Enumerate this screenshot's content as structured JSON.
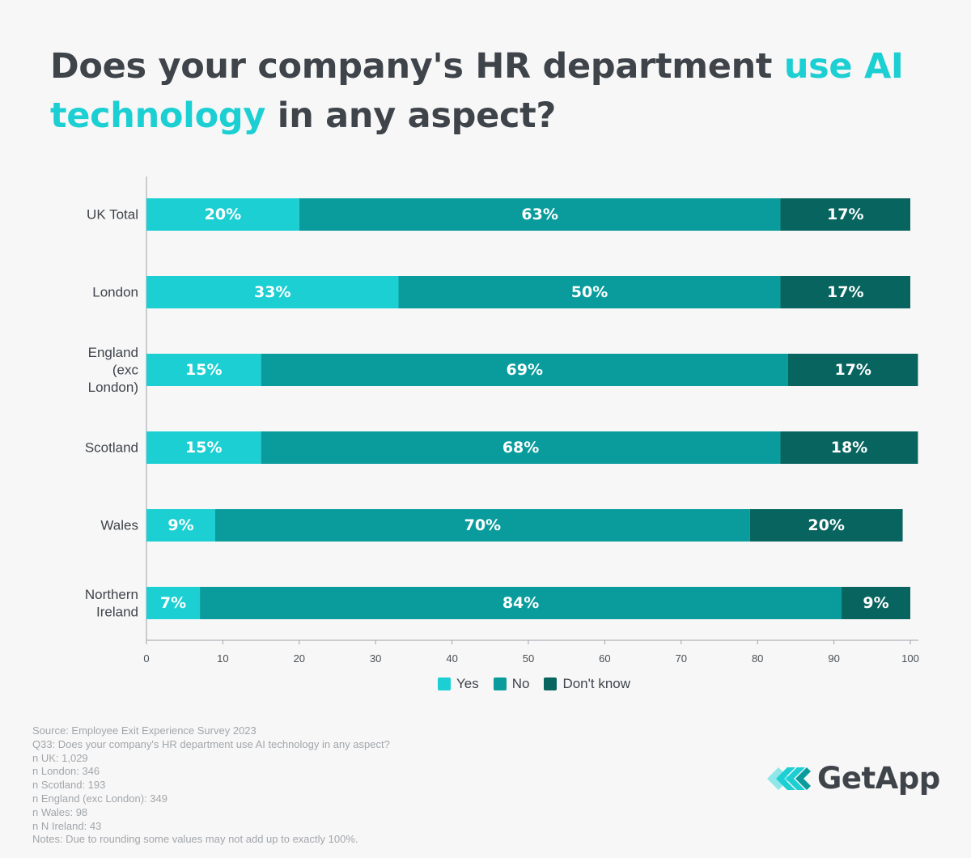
{
  "title": {
    "part1": "Does your company's HR department ",
    "highlight1": "use AI",
    "highlight2": "technology",
    "part2": " in any aspect?"
  },
  "colors": {
    "yes": "#1bcfd3",
    "no": "#0a9c9c",
    "dont_know": "#08645f",
    "title_highlight": "#1bcfd3",
    "axis": "#9ea3a8"
  },
  "chart_data": {
    "type": "bar",
    "orientation": "horizontal",
    "stacked": true,
    "categories": [
      [
        "UK Total"
      ],
      [
        "London"
      ],
      [
        "England",
        "(exc",
        "London)"
      ],
      [
        "Scotland"
      ],
      [
        "Wales"
      ],
      [
        "Northern",
        "Ireland"
      ]
    ],
    "series": [
      {
        "name": "Yes",
        "values": [
          20,
          33,
          15,
          15,
          9,
          7
        ],
        "labels": [
          "20%",
          "33%",
          "15%",
          "15%",
          "9%",
          "7%"
        ]
      },
      {
        "name": "No",
        "values": [
          63,
          50,
          69,
          68,
          70,
          84
        ],
        "labels": [
          "63%",
          "50%",
          "69%",
          "68%",
          "70%",
          "84%"
        ]
      },
      {
        "name": "Don't know",
        "values": [
          17,
          17,
          17,
          18,
          20,
          9
        ],
        "labels": [
          "17%",
          "17%",
          "17%",
          "18%",
          "20%",
          "9%"
        ]
      }
    ],
    "xlim": [
      0,
      100
    ],
    "xticks": [
      0,
      10,
      20,
      30,
      40,
      50,
      60,
      70,
      80,
      90,
      100
    ],
    "legend": "bottom"
  },
  "legend": {
    "yes": "Yes",
    "no": "No",
    "dont_know": "Don't know"
  },
  "notes": [
    "Source: Employee Exit Experience Survey 2023",
    "Q33: Does your company's HR department use AI technology in any aspect?",
    "n UK: 1,029",
    "n London: 346",
    "n Scotland: 193",
    "n England (exc London): 349",
    "n Wales: 98",
    "n N Ireland: 43",
    "Notes: Due to rounding some values may not add up to exactly 100%."
  ],
  "logo": {
    "text": "GetApp",
    "icon": "getapp-chevrons-icon"
  }
}
